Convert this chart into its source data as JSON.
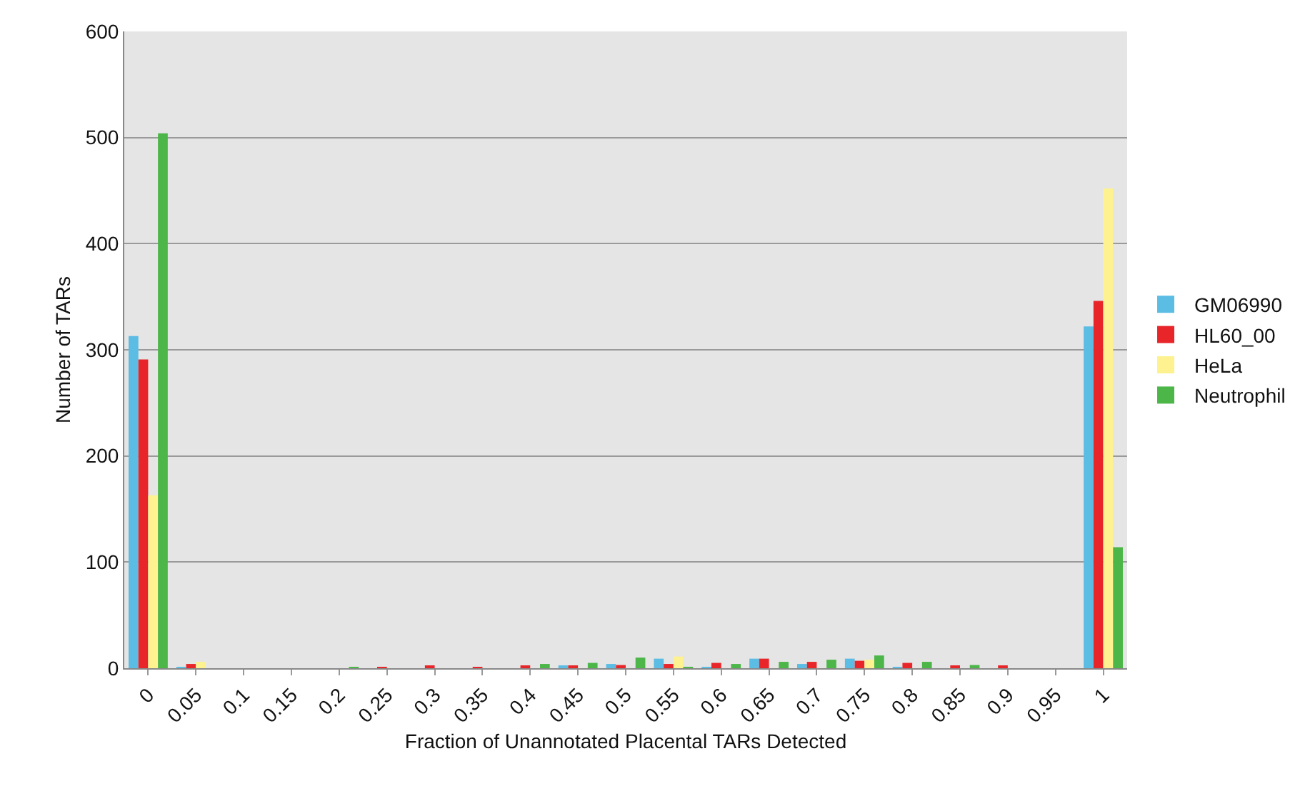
{
  "chart_data": {
    "type": "bar",
    "xlabel": "Fraction of Unannotated Placental TARs Detected",
    "ylabel": "Number of TARs",
    "categories": [
      "0",
      "0.05",
      "0.1",
      "0.15",
      "0.2",
      "0.25",
      "0.3",
      "0.35",
      "0.4",
      "0.45",
      "0.5",
      "0.55",
      "0.6",
      "0.65",
      "0.7",
      "0.75",
      "0.8",
      "0.85",
      "0.9",
      "0.95",
      "1"
    ],
    "series": [
      {
        "name": "GM06990",
        "color": "#5bbce4",
        "values": [
          313,
          1,
          0,
          0,
          0,
          0,
          0,
          0,
          0,
          2,
          4,
          9,
          1,
          9,
          4,
          9,
          1,
          0,
          0,
          0,
          322
        ]
      },
      {
        "name": "HL60_00",
        "color": "#e8262a",
        "values": [
          291,
          4,
          0,
          0,
          0,
          1,
          2,
          1,
          2,
          2,
          3,
          4,
          5,
          9,
          6,
          7,
          5,
          2,
          2,
          0,
          346
        ]
      },
      {
        "name": "HeLa",
        "color": "#fdf28f",
        "values": [
          163,
          6,
          0,
          0,
          null,
          0,
          0,
          0,
          0,
          0,
          0,
          11,
          0,
          0,
          0,
          8,
          0,
          0,
          0,
          0,
          452
        ]
      },
      {
        "name": "Neutrophil",
        "color": "#4cb648",
        "values": [
          504,
          0,
          0,
          0,
          1,
          0,
          0,
          0,
          4,
          5,
          10,
          1,
          4,
          6,
          8,
          12,
          6,
          3,
          0,
          0,
          114
        ]
      }
    ],
    "ylim": [
      0,
      600
    ],
    "yticks": [
      0,
      100,
      200,
      300,
      400,
      500,
      600
    ],
    "grid": "y",
    "legend": "right"
  }
}
